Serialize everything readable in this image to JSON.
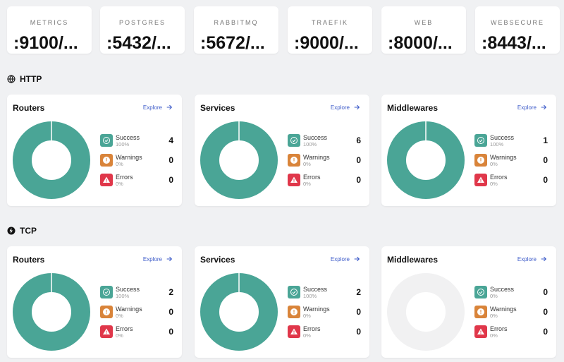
{
  "entrypoints": [
    {
      "name": "METRICS",
      "address": ":9100/..."
    },
    {
      "name": "POSTGRES",
      "address": ":5432/..."
    },
    {
      "name": "RABBITMQ",
      "address": ":5672/..."
    },
    {
      "name": "TRAEFIK",
      "address": ":9000/..."
    },
    {
      "name": "WEB",
      "address": ":8000/..."
    },
    {
      "name": "WEBSECURE",
      "address": ":8443/..."
    }
  ],
  "labels": {
    "explore": "Explore",
    "success": "Success",
    "warnings": "Warnings",
    "errors": "Errors"
  },
  "colors": {
    "success": "#4aa596",
    "warning": "#d9843a",
    "error": "#e0374a",
    "empty": "#f1f1f2"
  },
  "sections": [
    {
      "title": "HTTP",
      "icon": "globe-icon",
      "cards": [
        {
          "title": "Routers",
          "success": {
            "count": "4",
            "pct": "100%"
          },
          "warnings": {
            "count": "0",
            "pct": "0%"
          },
          "errors": {
            "count": "0",
            "pct": "0%"
          }
        },
        {
          "title": "Services",
          "success": {
            "count": "6",
            "pct": "100%"
          },
          "warnings": {
            "count": "0",
            "pct": "0%"
          },
          "errors": {
            "count": "0",
            "pct": "0%"
          }
        },
        {
          "title": "Middlewares",
          "success": {
            "count": "1",
            "pct": "100%"
          },
          "warnings": {
            "count": "0",
            "pct": "0%"
          },
          "errors": {
            "count": "0",
            "pct": "0%"
          }
        }
      ]
    },
    {
      "title": "TCP",
      "icon": "lightning-icon",
      "cards": [
        {
          "title": "Routers",
          "success": {
            "count": "2",
            "pct": "100%"
          },
          "warnings": {
            "count": "0",
            "pct": "0%"
          },
          "errors": {
            "count": "0",
            "pct": "0%"
          }
        },
        {
          "title": "Services",
          "success": {
            "count": "2",
            "pct": "100%"
          },
          "warnings": {
            "count": "0",
            "pct": "0%"
          },
          "errors": {
            "count": "0",
            "pct": "0%"
          }
        },
        {
          "title": "Middlewares",
          "success": {
            "count": "0",
            "pct": "0%"
          },
          "warnings": {
            "count": "0",
            "pct": "0%"
          },
          "errors": {
            "count": "0",
            "pct": "0%"
          }
        }
      ]
    }
  ]
}
